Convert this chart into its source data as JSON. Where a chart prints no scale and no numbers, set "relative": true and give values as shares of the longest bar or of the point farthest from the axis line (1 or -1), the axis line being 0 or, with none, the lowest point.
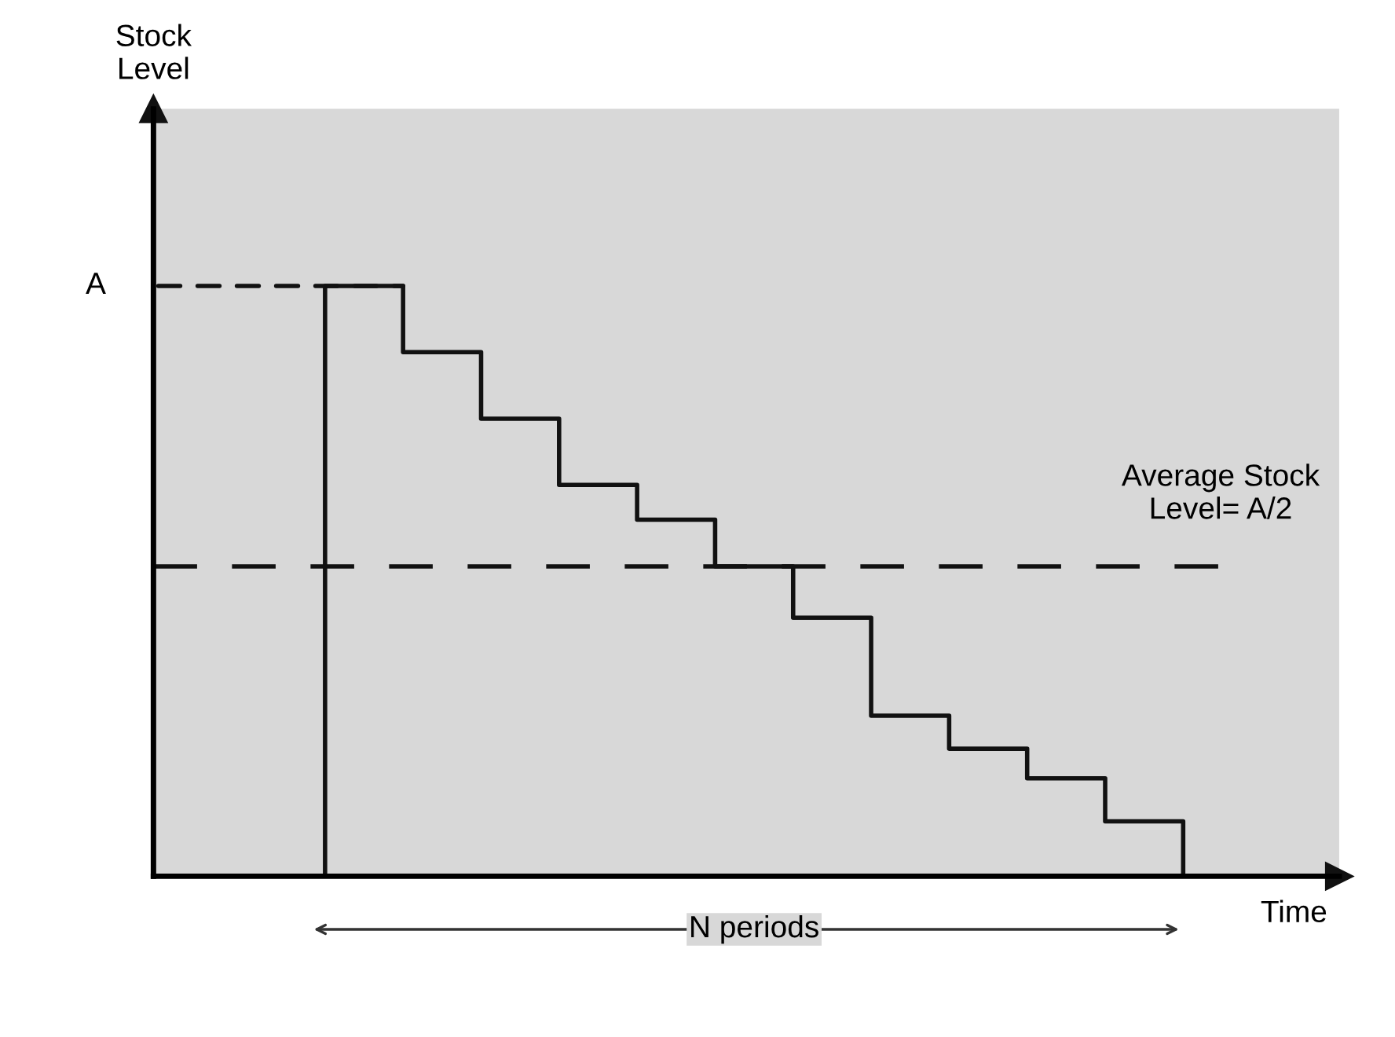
{
  "chart_data": {
    "type": "step",
    "relative": true,
    "xlabel": "Time",
    "tick_labels": false,
    "categories": [
      null,
      null,
      null,
      null,
      null,
      null,
      null,
      null,
      null,
      null,
      null,
      null,
      null
    ],
    "series": [
      {
        "color": "#111111",
        "values": [
          0,
          1.0,
          0.888,
          0.775,
          0.663,
          0.604,
          0.525,
          0.438,
          0.272,
          0.216,
          0.166,
          0.093,
          0
        ]
      }
    ],
    "ref_lines": [
      {
        "axis": "y",
        "value": 0.525,
        "label": "Average Stock\nLevel= A/2",
        "line_style": "dashed",
        "color": "#111111"
      }
    ],
    "annotations": [
      "Stock\nLevel",
      "A",
      "N periods"
    ],
    "line_style": "solid",
    "marker": "none"
  }
}
